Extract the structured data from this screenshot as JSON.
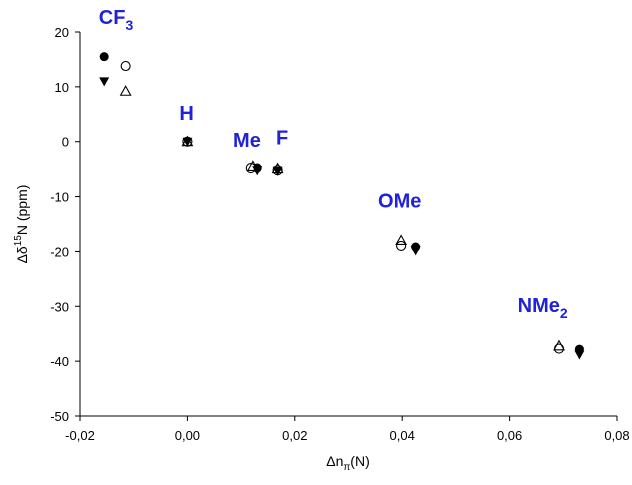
{
  "chart_data": {
    "type": "scatter",
    "xlabel": {
      "main": "Δn",
      "sub": "π",
      "suffix": "(N)"
    },
    "ylabel": {
      "pre": "Δδ",
      "sup": "15",
      "post": "N (ppm)"
    },
    "xlim": [
      -0.02,
      0.08
    ],
    "ylim": [
      -50,
      20
    ],
    "x_ticks": [
      -0.02,
      0.0,
      0.02,
      0.04,
      0.06,
      0.08
    ],
    "x_tick_labels": [
      "-0,02",
      "0,00",
      "0,02",
      "0,04",
      "0,06",
      "0,08"
    ],
    "y_ticks": [
      20,
      10,
      0,
      -10,
      -20,
      -30,
      -40,
      -50
    ],
    "y_tick_labels": [
      "20",
      "10",
      "0",
      "-10",
      "-20",
      "-30",
      "-40",
      "-50"
    ],
    "grid": false,
    "series": [
      {
        "marker": "filled-circle",
        "points": [
          [
            -0.0155,
            15.5
          ],
          [
            0.0,
            0.0
          ],
          [
            0.013,
            -4.8
          ],
          [
            0.0168,
            -5.2
          ],
          [
            0.0425,
            -19.2
          ],
          [
            0.073,
            -37.8
          ]
        ]
      },
      {
        "marker": "open-circle",
        "points": [
          [
            -0.0115,
            13.8
          ],
          [
            0.0,
            0.0
          ],
          [
            0.0118,
            -4.8
          ],
          [
            0.0168,
            -5.2
          ],
          [
            0.0398,
            -19.0
          ],
          [
            0.0692,
            -37.7
          ]
        ]
      },
      {
        "marker": "filled-triangle-down",
        "points": [
          [
            -0.0155,
            11.0
          ],
          [
            0.0,
            0.0
          ],
          [
            0.013,
            -5.2
          ],
          [
            0.0168,
            -5.3
          ],
          [
            0.0425,
            -19.8
          ],
          [
            0.073,
            -38.8
          ]
        ]
      },
      {
        "marker": "open-triangle-up",
        "points": [
          [
            -0.0115,
            9.2
          ],
          [
            0.0,
            0.0
          ],
          [
            0.0122,
            -4.5
          ],
          [
            0.0168,
            -4.9
          ],
          [
            0.0398,
            -18.0
          ],
          [
            0.0692,
            -37.2
          ]
        ]
      }
    ],
    "annotations": [
      {
        "text": "CF",
        "sub": "3",
        "x": -0.0165,
        "y": 21.5
      },
      {
        "text": "H",
        "sub": "",
        "x": -0.0015,
        "y": 4.0
      },
      {
        "text": "Me",
        "sub": "",
        "x": 0.0085,
        "y": -1.0
      },
      {
        "text": "F",
        "sub": "",
        "x": 0.0165,
        "y": -0.5
      },
      {
        "text": "OMe",
        "sub": "",
        "x": 0.0355,
        "y": -12.0
      },
      {
        "text": "NMe",
        "sub": "2",
        "x": 0.0615,
        "y": -31.0
      }
    ],
    "annotation_color": "#1f22d8",
    "marker_color": "#000000"
  }
}
